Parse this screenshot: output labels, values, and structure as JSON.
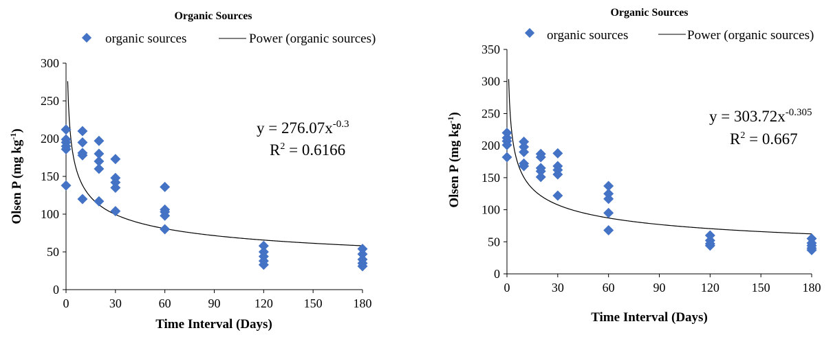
{
  "colors": {
    "marker": "#4472C4",
    "curve": "#000000"
  },
  "chart_data": [
    {
      "type": "scatter",
      "title": "Organic Sources",
      "xlabel": "Time Interval (Days)",
      "ylabel": "Olsen P (mg kg",
      "ylabel_sup": "-1",
      "ylabel_close": ")",
      "xlim": [
        0,
        180
      ],
      "ylim": [
        0,
        300
      ],
      "xticks": [
        "0",
        "30",
        "60",
        "90",
        "120",
        "150",
        "180"
      ],
      "yticks": [
        "0",
        "50",
        "100",
        "150",
        "200",
        "250",
        "300"
      ],
      "legend_position": "top",
      "series": [
        {
          "name": "organic sources",
          "marker": "diamond",
          "points": [
            [
              0,
              212
            ],
            [
              0,
              199
            ],
            [
              0,
              195
            ],
            [
              0,
              190
            ],
            [
              0,
              186
            ],
            [
              0,
              138
            ],
            [
              10,
              210
            ],
            [
              10,
              195
            ],
            [
              10,
              181
            ],
            [
              10,
              178
            ],
            [
              10,
              120
            ],
            [
              20,
              197
            ],
            [
              20,
              180
            ],
            [
              20,
              170
            ],
            [
              20,
              160
            ],
            [
              20,
              117
            ],
            [
              30,
              173
            ],
            [
              30,
              148
            ],
            [
              30,
              142
            ],
            [
              30,
              135
            ],
            [
              30,
              104
            ],
            [
              60,
              136
            ],
            [
              60,
              106
            ],
            [
              60,
              103
            ],
            [
              60,
              98
            ],
            [
              60,
              80
            ],
            [
              120,
              58
            ],
            [
              120,
              50
            ],
            [
              120,
              44
            ],
            [
              120,
              38
            ],
            [
              120,
              33
            ],
            [
              180,
              54
            ],
            [
              180,
              47
            ],
            [
              180,
              40
            ],
            [
              180,
              35
            ],
            [
              180,
              31
            ]
          ]
        },
        {
          "name": "Power (organic sources)",
          "type": "line",
          "fit": {
            "a": 276.07,
            "b": -0.3
          }
        }
      ],
      "equation_main": "y = 276.07x",
      "equation_exp": "-0.3",
      "r2_main": "R",
      "r2_sup": "2",
      "r2_value": " = 0.6166"
    },
    {
      "type": "scatter",
      "title": "Organic Sources",
      "xlabel": "Time Interval (Days)",
      "ylabel": "Olsen P (mg kg",
      "ylabel_sup": "-1",
      "ylabel_close": ")",
      "xlim": [
        0,
        180
      ],
      "ylim": [
        0,
        350
      ],
      "xticks": [
        "0",
        "30",
        "60",
        "90",
        "120",
        "150",
        "180"
      ],
      "yticks": [
        "0",
        "50",
        "100",
        "150",
        "200",
        "250",
        "300",
        "350"
      ],
      "legend_position": "top",
      "series": [
        {
          "name": "organic sources",
          "marker": "diamond",
          "points": [
            [
              0,
              220
            ],
            [
              0,
              212
            ],
            [
              0,
              207
            ],
            [
              0,
              201
            ],
            [
              0,
              182
            ],
            [
              10,
              206
            ],
            [
              10,
              198
            ],
            [
              10,
              190
            ],
            [
              10,
              172
            ],
            [
              10,
              168
            ],
            [
              20,
              187
            ],
            [
              20,
              182
            ],
            [
              20,
              165
            ],
            [
              20,
              160
            ],
            [
              20,
              151
            ],
            [
              30,
              188
            ],
            [
              30,
              168
            ],
            [
              30,
              162
            ],
            [
              30,
              155
            ],
            [
              30,
              122
            ],
            [
              60,
              137
            ],
            [
              60,
              125
            ],
            [
              60,
              117
            ],
            [
              60,
              95
            ],
            [
              60,
              68
            ],
            [
              120,
              60
            ],
            [
              120,
              52
            ],
            [
              120,
              47
            ],
            [
              120,
              44
            ],
            [
              180,
              55
            ],
            [
              180,
              48
            ],
            [
              180,
              44
            ],
            [
              180,
              40
            ],
            [
              180,
              37
            ]
          ]
        },
        {
          "name": "Power (organic sources)",
          "type": "line",
          "fit": {
            "a": 303.72,
            "b": -0.305
          }
        }
      ],
      "equation_main": "y = 303.72x",
      "equation_exp": "-0.305",
      "r2_main": "R",
      "r2_sup": "2",
      "r2_value": " = 0.667"
    }
  ]
}
